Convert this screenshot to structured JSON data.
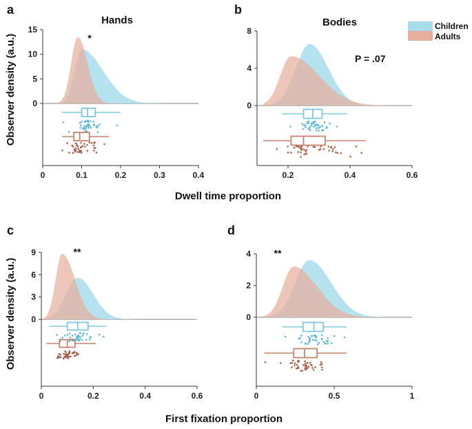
{
  "colors": {
    "children": "#A9DCEB",
    "adults": "#E7AE9E",
    "children_line": "#7CC8E0",
    "adults_line": "#C9826C",
    "children_dots": "#5BB8D6",
    "adults_dots": "#A95F48"
  },
  "legend": {
    "children": "Children",
    "adults": "Adults"
  },
  "labels": {
    "dwell_xlabel": "Dwell time proportion",
    "first_xlabel": "First fixation proportion",
    "ylabel_top": "Observer density (a.u.)",
    "ylabel_bottom": "Observer density (a.u.)"
  },
  "chart_data": [
    {
      "panel": "a",
      "type": "raincloud",
      "title": "Hands",
      "annotation": "*",
      "xlim": [
        0,
        0.4
      ],
      "xticks": [
        "0",
        "0.1",
        "0.2",
        "0.3",
        "0.4"
      ],
      "ylim": [
        0,
        15
      ],
      "yticks": [
        "0",
        "5",
        "10",
        "15"
      ],
      "series": [
        {
          "name": "Children",
          "peak_x": 0.1,
          "peak_y": 11,
          "start_x": 0.05,
          "end_x": 0.34,
          "sd_left": 0.018,
          "sd_right": 0.055,
          "box": {
            "whisker_low": 0.05,
            "q1": 0.1,
            "median": 0.115,
            "q3": 0.135,
            "whisker_high": 0.2
          }
        },
        {
          "name": "Adults",
          "peak_x": 0.09,
          "peak_y": 13.5,
          "start_x": 0.04,
          "end_x": 0.2,
          "sd_left": 0.017,
          "sd_right": 0.025,
          "box": {
            "whisker_low": 0.05,
            "q1": 0.08,
            "median": 0.095,
            "q3": 0.12,
            "whisker_high": 0.17
          }
        }
      ]
    },
    {
      "panel": "b",
      "type": "raincloud",
      "title": "Bodies",
      "annotation": "P = .07",
      "xlim": [
        0.1,
        0.6
      ],
      "xticks": [
        "0.2",
        "0.4",
        "0.6"
      ],
      "ylim": [
        0,
        8
      ],
      "yticks": [
        "0",
        "4",
        "8"
      ],
      "series": [
        {
          "name": "Children",
          "peak_x": 0.27,
          "peak_y": 6.6,
          "start_x": 0.14,
          "end_x": 0.52,
          "sd_left": 0.045,
          "sd_right": 0.06,
          "box": {
            "whisker_low": 0.18,
            "q1": 0.25,
            "median": 0.28,
            "q3": 0.31,
            "whisker_high": 0.39
          }
        },
        {
          "name": "Adults",
          "peak_x": 0.21,
          "peak_y": 5.3,
          "start_x": 0.12,
          "end_x": 0.52,
          "sd_left": 0.035,
          "sd_right": 0.09,
          "box": {
            "whisker_low": 0.12,
            "q1": 0.21,
            "median": 0.25,
            "q3": 0.32,
            "whisker_high": 0.45
          }
        }
      ]
    },
    {
      "panel": "c",
      "type": "raincloud",
      "annotation": "**",
      "xlim": [
        0,
        0.6
      ],
      "xticks": [
        "0",
        "0.2",
        "0.4",
        "0.6"
      ],
      "ylim": [
        0,
        9
      ],
      "yticks": [
        "0",
        "3",
        "6",
        "9"
      ],
      "series": [
        {
          "name": "Children",
          "peak_x": 0.14,
          "peak_y": 5.6,
          "start_x": 0.02,
          "end_x": 0.4,
          "sd_left": 0.045,
          "sd_right": 0.06,
          "box": {
            "whisker_low": 0.03,
            "q1": 0.1,
            "median": 0.14,
            "q3": 0.18,
            "whisker_high": 0.25
          }
        },
        {
          "name": "Adults",
          "peak_x": 0.08,
          "peak_y": 8.8,
          "start_x": 0.01,
          "end_x": 0.26,
          "sd_left": 0.025,
          "sd_right": 0.05,
          "box": {
            "whisker_low": 0.02,
            "q1": 0.07,
            "median": 0.1,
            "q3": 0.13,
            "whisker_high": 0.21
          }
        }
      ]
    },
    {
      "panel": "d",
      "type": "raincloud",
      "annotation": "**",
      "xlim": [
        0,
        1
      ],
      "xticks": [
        "0",
        "0.5",
        "1"
      ],
      "ylim": [
        0,
        4
      ],
      "yticks": [
        "0",
        "2",
        "4"
      ],
      "series": [
        {
          "name": "Children",
          "peak_x": 0.34,
          "peak_y": 3.6,
          "start_x": 0.1,
          "end_x": 0.82,
          "sd_left": 0.09,
          "sd_right": 0.14,
          "box": {
            "whisker_low": 0.17,
            "q1": 0.3,
            "median": 0.37,
            "q3": 0.43,
            "whisker_high": 0.58
          }
        },
        {
          "name": "Adults",
          "peak_x": 0.24,
          "peak_y": 3.2,
          "start_x": 0.03,
          "end_x": 0.78,
          "sd_left": 0.07,
          "sd_right": 0.15,
          "box": {
            "whisker_low": 0.05,
            "q1": 0.24,
            "median": 0.31,
            "q3": 0.39,
            "whisker_high": 0.58
          }
        }
      ]
    }
  ]
}
